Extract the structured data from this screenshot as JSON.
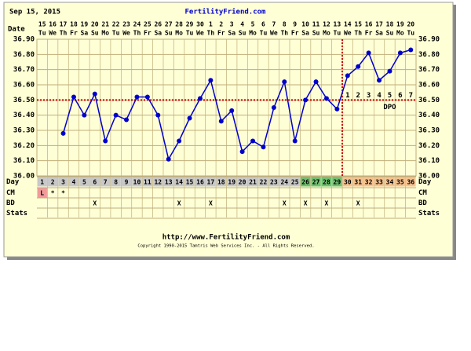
{
  "header": {
    "date": "Sep 15, 2015",
    "site": "FertilityFriend.com"
  },
  "chart_data": {
    "type": "line",
    "x_label": "Date",
    "categories": [
      "15",
      "16",
      "17",
      "18",
      "19",
      "20",
      "21",
      "22",
      "23",
      "24",
      "25",
      "26",
      "27",
      "28",
      "29",
      "30",
      "1",
      "2",
      "3",
      "4",
      "5",
      "6",
      "7",
      "8",
      "9",
      "10",
      "11",
      "12",
      "13",
      "14",
      "15",
      "16",
      "17",
      "18",
      "19",
      "20"
    ],
    "weekdays": [
      "Tu",
      "We",
      "Th",
      "Fr",
      "Sa",
      "Su",
      "Mo",
      "Tu",
      "We",
      "Th",
      "Fr",
      "Sa",
      "Su",
      "Mo",
      "Tu",
      "We",
      "Th",
      "Fr",
      "Sa",
      "Su",
      "Mo",
      "Tu",
      "We",
      "Th",
      "Fr",
      "Sa",
      "Su",
      "Mo",
      "Tu",
      "We",
      "Th",
      "Fr",
      "Sa",
      "Su",
      "Mo",
      "Tu"
    ],
    "values": [
      null,
      null,
      36.28,
      36.52,
      36.4,
      36.54,
      36.23,
      36.4,
      36.37,
      36.52,
      36.52,
      36.4,
      36.11,
      36.23,
      36.38,
      36.51,
      36.63,
      36.36,
      36.43,
      36.16,
      36.23,
      36.19,
      36.45,
      36.62,
      36.23,
      36.5,
      36.62,
      36.51,
      36.44,
      36.66,
      36.72,
      36.81,
      36.63,
      36.69,
      36.81,
      36.83
    ],
    "color": "#0000cc",
    "ylim": [
      36.0,
      36.9
    ],
    "yticks": [
      {
        "value": 36.0,
        "label": "36.00"
      },
      {
        "value": 36.1,
        "label": "36.10"
      },
      {
        "value": 36.2,
        "label": "36.20"
      },
      {
        "value": 36.3,
        "label": "36.30"
      },
      {
        "value": 36.4,
        "label": "36.40"
      },
      {
        "value": 36.5,
        "label": "36.50"
      },
      {
        "value": 36.6,
        "label": "36.60"
      },
      {
        "value": 36.7,
        "label": "36.70"
      },
      {
        "value": 36.8,
        "label": "36.80"
      },
      {
        "value": 36.9,
        "label": "36.90"
      }
    ],
    "grid": true,
    "coverline": 36.5,
    "coverline_color": "#cc0000",
    "ovulation_day": 29,
    "dpo_label": "DPO",
    "dpo": [
      null,
      null,
      null,
      null,
      null,
      null,
      null,
      null,
      null,
      null,
      null,
      null,
      null,
      null,
      null,
      null,
      null,
      null,
      null,
      null,
      null,
      null,
      null,
      null,
      null,
      null,
      null,
      null,
      null,
      1,
      2,
      3,
      4,
      5,
      6,
      7
    ],
    "rows": {
      "day": {
        "label": "Day",
        "values": [
          1,
          2,
          3,
          4,
          5,
          6,
          7,
          8,
          9,
          10,
          11,
          12,
          13,
          14,
          15,
          16,
          17,
          18,
          19,
          20,
          21,
          22,
          23,
          24,
          25,
          26,
          27,
          28,
          29,
          30,
          31,
          32,
          33,
          34,
          35,
          36
        ],
        "colors": [
          "#c8c8c8",
          "#c8c8c8",
          "#c8c8c8",
          "#c8c8c8",
          "#c8c8c8",
          "#c8c8c8",
          "#c8c8c8",
          "#c8c8c8",
          "#c8c8c8",
          "#c8c8c8",
          "#c8c8c8",
          "#c8c8c8",
          "#c8c8c8",
          "#c8c8c8",
          "#c8c8c8",
          "#c8c8c8",
          "#c8c8c8",
          "#c8c8c8",
          "#c8c8c8",
          "#c8c8c8",
          "#c8c8c8",
          "#c8c8c8",
          "#c8c8c8",
          "#c8c8c8",
          "#c8c8c8",
          "#6fc06f",
          "#6fc06f",
          "#6fc06f",
          "#6fc06f",
          "#f6c28e",
          "#f6c28e",
          "#f6c28e",
          "#f6c28e",
          "#f6c28e",
          "#f6c28e",
          "#f6c28e"
        ]
      },
      "cm": {
        "label": "CM",
        "values": [
          "L",
          "*",
          "*",
          null,
          null,
          null,
          null,
          null,
          null,
          null,
          null,
          null,
          null,
          null,
          null,
          null,
          null,
          null,
          null,
          null,
          null,
          null,
          null,
          null,
          null,
          null,
          null,
          null,
          null,
          null,
          null,
          null,
          null,
          null,
          null,
          null
        ],
        "colors": [
          "#f29a9a",
          null,
          null,
          null,
          null,
          null,
          null,
          null,
          null,
          null,
          null,
          null,
          null,
          null,
          null,
          null,
          null,
          null,
          null,
          null,
          null,
          null,
          null,
          null,
          null,
          null,
          null,
          null,
          null,
          null,
          null,
          null,
          null,
          null,
          null,
          null
        ]
      },
      "bd": {
        "label": "BD",
        "values": [
          null,
          null,
          null,
          null,
          null,
          "X",
          null,
          null,
          null,
          null,
          null,
          null,
          null,
          "X",
          null,
          null,
          "X",
          null,
          null,
          null,
          null,
          null,
          null,
          "X",
          null,
          "X",
          null,
          "X",
          null,
          null,
          "X",
          null,
          null,
          null,
          null,
          null
        ]
      },
      "stats": {
        "label": "Stats"
      }
    }
  },
  "footer": {
    "url": "http://www.FertilityFriend.com",
    "copyright": "Copyright 1990-2015 Tamtris Web Services Inc. - All Rights Reserved."
  }
}
